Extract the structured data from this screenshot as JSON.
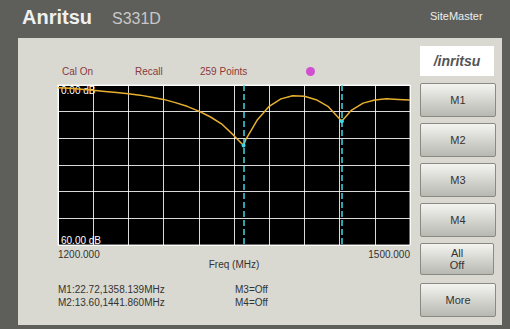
{
  "chart_data": {
    "type": "line",
    "x_label": "Freq (MHz)",
    "x": [
      1200,
      1210,
      1220,
      1230,
      1240,
      1250,
      1260,
      1270,
      1280,
      1290,
      1300,
      1310,
      1320,
      1330,
      1340,
      1350,
      1358.139,
      1360,
      1370,
      1380,
      1390,
      1400,
      1410,
      1420,
      1430,
      1441.86,
      1450,
      1460,
      1470,
      1480,
      1490,
      1500
    ],
    "values": [
      1.0,
      1.2,
      1.6,
      2.0,
      2.4,
      2.8,
      3.3,
      3.8,
      4.6,
      5.4,
      6.6,
      8.0,
      9.8,
      12.0,
      14.8,
      19.0,
      22.72,
      20.5,
      13.0,
      8.0,
      5.2,
      4.0,
      4.2,
      5.5,
      8.0,
      13.6,
      9.5,
      6.8,
      5.6,
      5.2,
      5.4,
      5.6
    ],
    "color": "#e8b030",
    "xlim": [
      1200,
      1500
    ],
    "xticks": [
      {
        "value": 1200,
        "label": "1200.000"
      },
      {
        "value": 1230,
        "label": null
      },
      {
        "value": 1260,
        "label": null
      },
      {
        "value": 1290,
        "label": null
      },
      {
        "value": 1320,
        "label": null
      },
      {
        "value": 1350,
        "label": null
      },
      {
        "value": 1380,
        "label": null
      },
      {
        "value": 1410,
        "label": null
      },
      {
        "value": 1440,
        "label": null
      },
      {
        "value": 1470,
        "label": null
      },
      {
        "value": 1500,
        "label": "1500.000"
      }
    ],
    "ylim": [
      0,
      60
    ],
    "yticks": [
      {
        "value": 0,
        "label": "0.00 dB"
      },
      {
        "value": 10,
        "label": null
      },
      {
        "value": 20,
        "label": null
      },
      {
        "value": 30,
        "label": null
      },
      {
        "value": 40,
        "label": null
      },
      {
        "value": 50,
        "label": null
      },
      {
        "value": 60,
        "label": "60.00 dB"
      }
    ],
    "grid": true,
    "markers": [
      {
        "label": "M1:22.72,1358.139MHz",
        "x": 1358.139,
        "value": 22.72
      },
      {
        "label": "M2:13.60,1441.860MHz",
        "x": 1441.86,
        "value": 13.6
      }
    ],
    "marker_status": [
      "M3=Off",
      "M4=Off"
    ]
  },
  "device": {
    "brand": "Anritsu",
    "model": "S331D",
    "product": "SiteMaster",
    "header": [
      "Cal On",
      "Recall",
      "259 Points"
    ],
    "logo": "/inritsu",
    "softkeys": [
      "M1",
      "M2",
      "M3",
      "M4",
      "All Off",
      "More"
    ]
  }
}
